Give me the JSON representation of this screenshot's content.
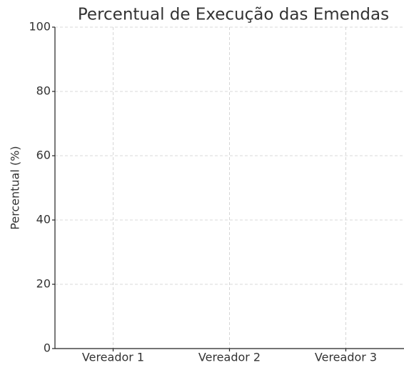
{
  "chart_data": {
    "type": "bar",
    "title": "Percentual de Execução das Emendas",
    "ylabel": "Percentual (%)",
    "categories": [
      "Vereador 1",
      "Vereador 2",
      "Vereador 3"
    ],
    "values": [
      0,
      0,
      0
    ],
    "ylim": [
      0,
      100
    ],
    "yticks": [
      0,
      20,
      40,
      60,
      80,
      100
    ],
    "grid": true
  }
}
